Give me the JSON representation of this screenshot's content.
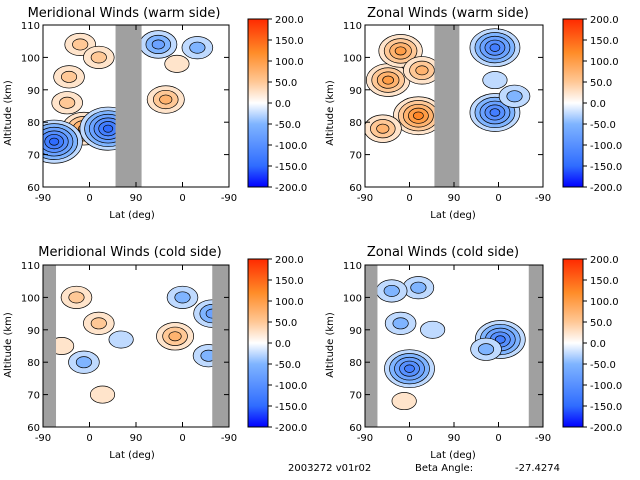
{
  "footer": {
    "version": "2003272 v01r02",
    "beta_label": "Beta Angle:",
    "beta_value": "-27.4274"
  },
  "colors": {
    "scale": [
      "#0000ff",
      "#2f6cff",
      "#7fb4ff",
      "#ffffff",
      "#ffc896",
      "#ff8c28",
      "#ff2a00"
    ],
    "data_gap": "#a0a0a0",
    "contour": "#000000"
  },
  "chart_data": [
    {
      "type": "heatmap",
      "title": "Meridional Winds (warm side)",
      "xlabel": "Lat (deg)",
      "ylabel": "Altitude (km)",
      "x_tick_labels": [
        "-90",
        "0",
        "90",
        "0",
        "-90"
      ],
      "ylim": [
        60,
        110
      ],
      "y_ticks": [
        60,
        70,
        80,
        90,
        100,
        110
      ],
      "colorbar": {
        "range": [
          -200,
          200
        ],
        "tick_labels": [
          "200.0",
          "150.0",
          "100.0",
          "50.0",
          "0.0",
          "-50.0",
          "-100.0",
          "-150.0",
          "-200.0"
        ]
      },
      "blobs": [
        {
          "x": 0.22,
          "y": 78,
          "v": 95
        },
        {
          "x": 0.14,
          "y": 94,
          "v": 55
        },
        {
          "x": 0.2,
          "y": 104,
          "v": 50
        },
        {
          "x": 0.06,
          "y": 74,
          "v": -140
        },
        {
          "x": 0.35,
          "y": 78,
          "v": -160
        },
        {
          "x": 0.3,
          "y": 100,
          "v": 45
        },
        {
          "x": 0.13,
          "y": 86,
          "v": 40
        },
        {
          "x": 0.66,
          "y": 87,
          "v": 80
        },
        {
          "x": 0.62,
          "y": 104,
          "v": -75
        },
        {
          "x": 0.83,
          "y": 103,
          "v": -60
        },
        {
          "x": 0.72,
          "y": 98,
          "v": 30
        }
      ],
      "gaps": [
        [
          0.39,
          0.53
        ]
      ]
    },
    {
      "type": "heatmap",
      "title": "Zonal Winds (warm side)",
      "xlabel": "Lat (deg)",
      "ylabel": "Altitude (km)",
      "x_tick_labels": [
        "-90",
        "0",
        "90",
        "0",
        "-90"
      ],
      "ylim": [
        60,
        110
      ],
      "y_ticks": [
        60,
        70,
        80,
        90,
        100,
        110
      ],
      "colorbar": {
        "range": [
          -200,
          200
        ],
        "tick_labels": [
          "200.0",
          "150.0",
          "100.0",
          "50.0",
          "0.0",
          "-50.0",
          "-100.0",
          "-150.0",
          "-200.0"
        ]
      },
      "blobs": [
        {
          "x": 0.13,
          "y": 93,
          "v": 110
        },
        {
          "x": 0.3,
          "y": 82,
          "v": 125
        },
        {
          "x": 0.2,
          "y": 102,
          "v": 90
        },
        {
          "x": 0.32,
          "y": 96,
          "v": 65
        },
        {
          "x": 0.1,
          "y": 78,
          "v": 80
        },
        {
          "x": 0.73,
          "y": 103,
          "v": -120
        },
        {
          "x": 0.73,
          "y": 83,
          "v": -115
        },
        {
          "x": 0.73,
          "y": 93,
          "v": -35
        },
        {
          "x": 0.84,
          "y": 88,
          "v": -40
        }
      ],
      "gaps": [
        [
          0.39,
          0.53
        ]
      ]
    },
    {
      "type": "heatmap",
      "title": "Meridional Winds (cold side)",
      "xlabel": "Lat (deg)",
      "ylabel": "Altitude (km)",
      "x_tick_labels": [
        "-90",
        "0",
        "90",
        "0",
        "-90"
      ],
      "ylim": [
        60,
        110
      ],
      "y_ticks": [
        60,
        70,
        80,
        90,
        100,
        110
      ],
      "colorbar": {
        "range": [
          -200,
          200
        ],
        "tick_labels": [
          "200.0",
          "150.0",
          "100.0",
          "50.0",
          "0.0",
          "-50.0",
          "-100.0",
          "-150.0",
          "-200.0"
        ]
      },
      "blobs": [
        {
          "x": 0.3,
          "y": 92,
          "v": 55
        },
        {
          "x": 0.18,
          "y": 100,
          "v": 40
        },
        {
          "x": 0.22,
          "y": 80,
          "v": -40
        },
        {
          "x": 0.1,
          "y": 85,
          "v": 30
        },
        {
          "x": 0.42,
          "y": 87,
          "v": -35
        },
        {
          "x": 0.71,
          "y": 88,
          "v": 70
        },
        {
          "x": 0.75,
          "y": 100,
          "v": -40
        },
        {
          "x": 0.89,
          "y": 82,
          "v": -55
        },
        {
          "x": 0.91,
          "y": 95,
          "v": -70
        },
        {
          "x": 0.32,
          "y": 70,
          "v": 20
        }
      ],
      "gaps": [
        [
          0.0,
          0.07
        ],
        [
          0.91,
          1.0
        ]
      ]
    },
    {
      "type": "heatmap",
      "title": "Zonal Winds (cold side)",
      "xlabel": "Lat (deg)",
      "ylabel": "Altitude (km)",
      "x_tick_labels": [
        "-90",
        "0",
        "90",
        "0",
        "-90"
      ],
      "ylim": [
        60,
        110
      ],
      "y_ticks": [
        60,
        70,
        80,
        90,
        100,
        110
      ],
      "colorbar": {
        "range": [
          -200,
          200
        ],
        "tick_labels": [
          "200.0",
          "150.0",
          "100.0",
          "50.0",
          "0.0",
          "-50.0",
          "-100.0",
          "-150.0",
          "-200.0"
        ]
      },
      "blobs": [
        {
          "x": 0.25,
          "y": 78,
          "v": -135
        },
        {
          "x": 0.2,
          "y": 92,
          "v": -60
        },
        {
          "x": 0.3,
          "y": 103,
          "v": -50
        },
        {
          "x": 0.15,
          "y": 102,
          "v": -55
        },
        {
          "x": 0.38,
          "y": 90,
          "v": -30
        },
        {
          "x": 0.76,
          "y": 87,
          "v": -120
        },
        {
          "x": 0.68,
          "y": 84,
          "v": -45
        },
        {
          "x": 0.22,
          "y": 68,
          "v": 30
        }
      ],
      "gaps": [
        [
          0.0,
          0.07
        ],
        [
          0.92,
          1.0
        ]
      ]
    }
  ]
}
